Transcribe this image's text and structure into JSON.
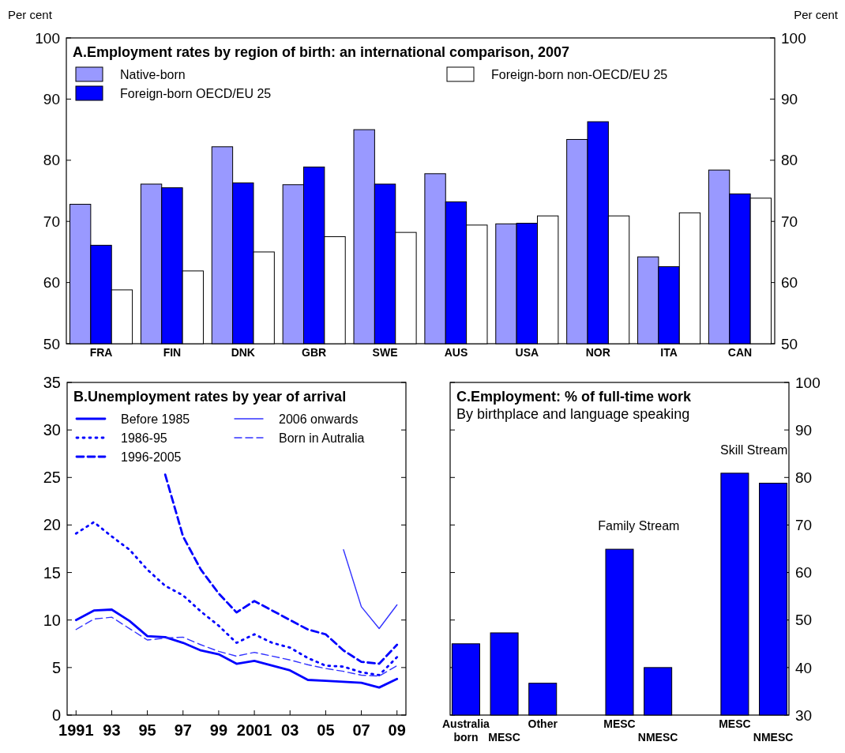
{
  "chart_data": [
    {
      "type": "bar",
      "title": "A.Employment rates  by region of birth: an international comparison, 2007",
      "ylabel": "Per cent",
      "y2label": "Per cent",
      "categories": [
        "FRA",
        "FIN",
        "DNK",
        "GBR",
        "SWE",
        "AUS",
        "USA",
        "NOR",
        "ITA",
        "CAN"
      ],
      "series": [
        {
          "name": "Native-born",
          "color": "#9999ff",
          "values": [
            72.8,
            76.1,
            82.2,
            76.0,
            85.0,
            77.8,
            69.6,
            83.4,
            64.2,
            78.4
          ]
        },
        {
          "name": "Foreign-born OECD/EU 25",
          "color": "#0000ff",
          "values": [
            66.1,
            75.5,
            76.3,
            78.9,
            76.1,
            73.2,
            69.7,
            86.3,
            62.6,
            74.5
          ]
        },
        {
          "name": "Foreign-born non-OECD/EU 25",
          "color": "#ffffff",
          "values": [
            58.8,
            61.9,
            65.0,
            67.5,
            68.2,
            69.4,
            70.9,
            70.9,
            71.4,
            73.8
          ]
        }
      ],
      "ylim": [
        50,
        100
      ],
      "yticks": [
        50,
        60,
        70,
        80,
        90,
        100
      ],
      "y2lim": [
        50,
        100
      ],
      "y2ticks": [
        50,
        60,
        70,
        80,
        90,
        100
      ],
      "legend": "top left"
    },
    {
      "type": "line",
      "title": "B.Unemployment rates by year of arrival",
      "x": [
        1991,
        1992,
        1993,
        1994,
        1995,
        1996,
        1997,
        1998,
        1999,
        2000,
        2001,
        2002,
        2003,
        2004,
        2005,
        2006,
        2007,
        2008,
        2009
      ],
      "series": [
        {
          "name": "Before 1985",
          "color": "#0000ff",
          "line_style": "solid",
          "values": [
            10.0,
            11.0,
            11.1,
            9.9,
            8.3,
            8.2,
            7.6,
            6.8,
            6.4,
            5.4,
            5.7,
            5.2,
            4.7,
            3.7,
            3.6,
            3.5,
            3.4,
            2.9,
            3.8
          ]
        },
        {
          "name": "1986-95",
          "color": "#0000ff",
          "line_style": "dotted",
          "values": [
            19.1,
            20.3,
            18.8,
            17.4,
            15.3,
            13.6,
            12.6,
            10.9,
            9.4,
            7.6,
            8.5,
            7.6,
            7.1,
            6.0,
            5.2,
            5.1,
            4.5,
            4.2,
            6.1
          ]
        },
        {
          "name": "1996-2005",
          "color": "#0000ff",
          "line_style": "dashed",
          "values": [
            null,
            null,
            null,
            null,
            null,
            25.3,
            18.8,
            15.3,
            12.8,
            10.8,
            12.0,
            11.0,
            10.0,
            9.0,
            8.5,
            6.8,
            5.6,
            5.4,
            7.4
          ]
        },
        {
          "name": "2006 onwards",
          "color": "#3333ff",
          "line_style": "solid",
          "values": [
            null,
            null,
            null,
            null,
            null,
            null,
            null,
            null,
            null,
            null,
            null,
            null,
            null,
            null,
            null,
            17.4,
            11.4,
            9.1,
            11.6
          ]
        },
        {
          "name": "Born in Autralia",
          "color": "#3333ff",
          "line_style": "dashed",
          "values": [
            9.0,
            10.1,
            10.3,
            9.1,
            7.9,
            8.1,
            8.2,
            7.4,
            6.7,
            6.2,
            6.6,
            6.2,
            5.8,
            5.3,
            4.9,
            4.6,
            4.2,
            4.1,
            5.2
          ]
        }
      ],
      "xlim": [
        1990.5,
        2009.5
      ],
      "xticks": [
        {
          "value": 1991,
          "label": "1991"
        },
        {
          "value": 1993,
          "label": "93"
        },
        {
          "value": 1995,
          "label": "95"
        },
        {
          "value": 1997,
          "label": "97"
        },
        {
          "value": 1999,
          "label": "99"
        },
        {
          "value": 2001,
          "label": "2001"
        },
        {
          "value": 2003,
          "label": "03"
        },
        {
          "value": 2005,
          "label": "05"
        },
        {
          "value": 2007,
          "label": "07"
        },
        {
          "value": 2009,
          "label": "09"
        }
      ],
      "ylim": [
        0,
        35
      ],
      "yticks": [
        0,
        5,
        10,
        15,
        20,
        25,
        30,
        35
      ],
      "legend": "top left"
    },
    {
      "type": "bar",
      "title": "C.Employment: % of full-time work",
      "subtitle": "By birthplace and language speaking",
      "categories": [
        "Australia born",
        "MESC",
        "Other",
        null,
        "MESC",
        "NMESC",
        null,
        "MESC",
        "NMESC"
      ],
      "series": [
        {
          "color": "#0000ff",
          "axis": "y2",
          "values": [
            45.0,
            47.3,
            36.7,
            null,
            64.9,
            40.0,
            null,
            80.9,
            78.8
          ]
        }
      ],
      "y2lim": [
        30,
        100
      ],
      "y2ticks": [
        30,
        40,
        50,
        60,
        70,
        80,
        90,
        100
      ],
      "annotations": [
        "Family Stream",
        "Skill Stream"
      ]
    }
  ]
}
